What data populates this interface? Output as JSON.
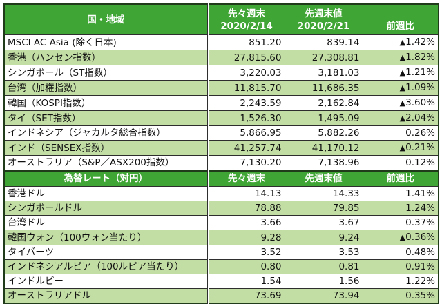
{
  "colors": {
    "header_bg": "#3fa535",
    "header_text": "#ffffff",
    "alt_row_bg": "#c2dea5",
    "negative": "#e02020"
  },
  "indices": {
    "headers": {
      "country": "国・地域",
      "prev2_line1": "先々週末",
      "prev2_line2": "2020/2/14",
      "prev_line1": "先週末値",
      "prev_line2": "2020/2/21",
      "change": "前週比"
    },
    "rows": [
      {
        "name": "MSCI AC Asia (除く日本)",
        "prev2": "851.20",
        "prev": "839.14",
        "change": "1.42%",
        "negative": true
      },
      {
        "name": "香港（ハンセン指数）",
        "prev2": "27,815.60",
        "prev": "27,308.81",
        "change": "1.82%",
        "negative": true
      },
      {
        "name": "シンガポール（ST指数）",
        "prev2": "3,220.03",
        "prev": "3,181.03",
        "change": "1.21%",
        "negative": true
      },
      {
        "name": "台湾（加権指数）",
        "prev2": "11,815.70",
        "prev": "11,686.35",
        "change": "1.09%",
        "negative": true
      },
      {
        "name": "韓国（KOSPI指数）",
        "prev2": "2,243.59",
        "prev": "2,162.84",
        "change": "3.60%",
        "negative": true
      },
      {
        "name": "タイ（SET指数）",
        "prev2": "1,526.30",
        "prev": "1,495.09",
        "change": "2.04%",
        "negative": true
      },
      {
        "name": "インドネシア（ジャカルタ総合指数）",
        "prev2": "5,866.95",
        "prev": "5,882.26",
        "change": "0.26%",
        "negative": false
      },
      {
        "name": "インド（SENSEX指数）",
        "prev2": "41,257.74",
        "prev": "41,170.12",
        "change": "0.21%",
        "negative": true
      },
      {
        "name": "オーストラリア（S&P／ASX200指数）",
        "prev2": "7,130.20",
        "prev": "7,138.96",
        "change": "0.12%",
        "negative": false
      }
    ]
  },
  "fx": {
    "headers": {
      "name": "為替レート（対円）",
      "prev2": "先々週末",
      "prev": "先週末値",
      "change": "前週比"
    },
    "rows": [
      {
        "name": "香港ドル",
        "prev2": "14.13",
        "prev": "14.33",
        "change": "1.41%",
        "negative": false
      },
      {
        "name": "シンガポールドル",
        "prev2": "78.88",
        "prev": "79.85",
        "change": "1.24%",
        "negative": false
      },
      {
        "name": "台湾ドル",
        "prev2": "3.66",
        "prev": "3.67",
        "change": "0.37%",
        "negative": false
      },
      {
        "name": "韓国ウォン（100ウォン当たり）",
        "prev2": "9.28",
        "prev": "9.24",
        "change": "0.36%",
        "negative": true
      },
      {
        "name": "タイバーツ",
        "prev2": "3.52",
        "prev": "3.53",
        "change": "0.48%",
        "negative": false
      },
      {
        "name": "インドネシアルピア（100ルピア当たり）",
        "prev2": "0.80",
        "prev": "0.81",
        "change": "0.91%",
        "negative": false
      },
      {
        "name": "インドルピー",
        "prev2": "1.54",
        "prev": "1.56",
        "change": "1.22%",
        "negative": false
      },
      {
        "name": "オーストラリアドル",
        "prev2": "73.69",
        "prev": "73.94",
        "change": "0.35%",
        "negative": false
      }
    ]
  },
  "glyphs": {
    "down_triangle": "▲"
  }
}
